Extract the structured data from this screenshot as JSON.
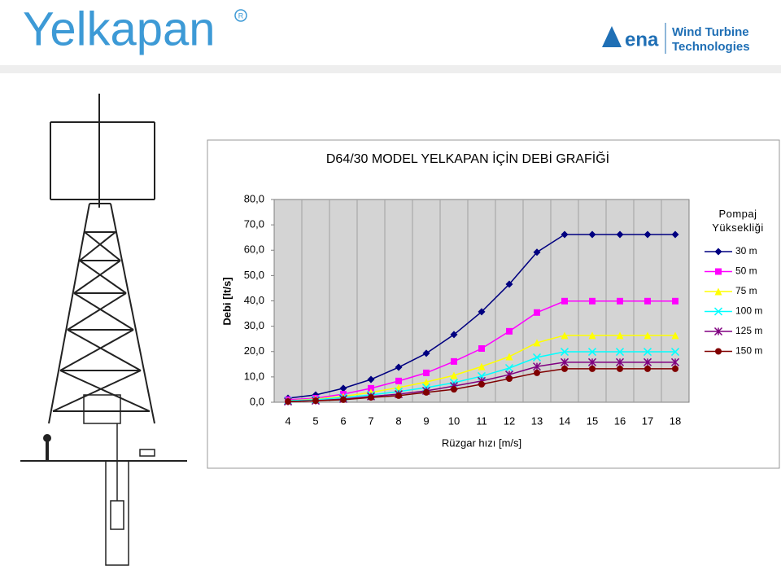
{
  "header": {
    "brand": "Yelkapan",
    "partner_mark": "ena",
    "partner_line1": "Wind Turbine",
    "partner_line2": "Technologies"
  },
  "chart_data": {
    "type": "line",
    "title": "D64/30 MODEL YELKAPAN İÇİN DEBİ GRAFİĞİ",
    "x_label": "Rüzgar hızı [m/s]",
    "y_label": "Debi [lt/s]",
    "categories": [
      "4",
      "5",
      "6",
      "7",
      "8",
      "9",
      "10",
      "11",
      "12",
      "13",
      "14",
      "15",
      "16",
      "17",
      "18"
    ],
    "ylim": [
      0,
      80
    ],
    "yticks": [
      {
        "value": 0,
        "label": "0,0"
      },
      {
        "value": 10,
        "label": "10,0"
      },
      {
        "value": 20,
        "label": "20,0"
      },
      {
        "value": 30,
        "label": "30,0"
      },
      {
        "value": 40,
        "label": "40,0"
      },
      {
        "value": 50,
        "label": "50,0"
      },
      {
        "value": 60,
        "label": "60,0"
      },
      {
        "value": 70,
        "label": "70,0"
      },
      {
        "value": 80,
        "label": "80,0"
      }
    ],
    "legend_title": "Pompaj Yüksekliği",
    "legend_position": "right",
    "series": [
      {
        "name": "30 m",
        "color": "#000080",
        "marker": "diamond",
        "values": [
          1.6,
          2.9,
          5.5,
          9.0,
          13.8,
          19.3,
          26.7,
          35.7,
          46.6,
          59.2,
          66.2,
          66.2,
          66.2,
          66.2,
          66.2
        ]
      },
      {
        "name": "50 m",
        "color": "#ff00ff",
        "marker": "square",
        "values": [
          1.0,
          1.6,
          3.2,
          5.5,
          8.4,
          11.6,
          16.1,
          21.2,
          28.0,
          35.4,
          39.9,
          39.9,
          39.9,
          39.9,
          39.9
        ]
      },
      {
        "name": "75 m",
        "color": "#ffff00",
        "marker": "triangle",
        "values": [
          0.6,
          1.3,
          2.3,
          3.9,
          5.8,
          8.0,
          10.6,
          14.1,
          18.0,
          23.5,
          26.4,
          26.4,
          26.4,
          26.4,
          26.4
        ]
      },
      {
        "name": "100 m",
        "color": "#00ffff",
        "marker": "x",
        "values": [
          0.6,
          1.0,
          1.9,
          2.9,
          4.2,
          5.8,
          7.7,
          10.3,
          13.5,
          17.7,
          19.9,
          19.9,
          19.9,
          19.9,
          19.9
        ]
      },
      {
        "name": "125 m",
        "color": "#800080",
        "marker": "star",
        "values": [
          0.3,
          0.6,
          1.3,
          2.3,
          3.2,
          4.5,
          6.4,
          8.4,
          10.9,
          14.1,
          15.8,
          15.8,
          15.8,
          15.8,
          15.8
        ]
      },
      {
        "name": "150 m",
        "color": "#800000",
        "marker": "circle",
        "values": [
          0.3,
          0.6,
          1.0,
          1.9,
          2.6,
          3.9,
          5.1,
          7.1,
          9.3,
          11.6,
          13.2,
          13.2,
          13.2,
          13.2,
          13.2
        ]
      }
    ]
  }
}
